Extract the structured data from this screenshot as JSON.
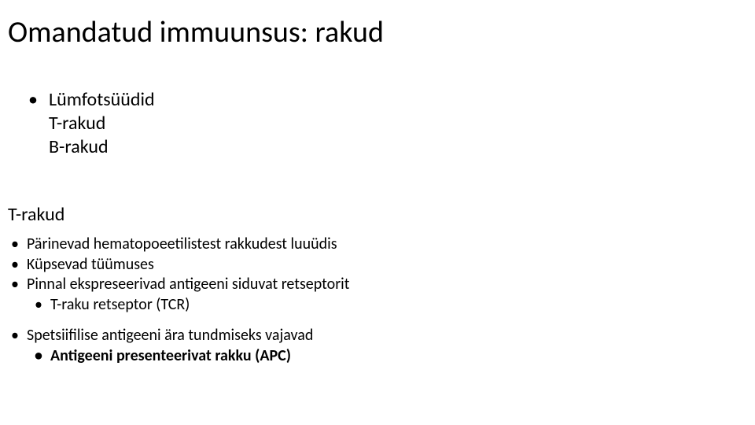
{
  "background_color": "#ffffff",
  "text_color": "#000000",
  "title": {
    "text": "Omandatud immuunsus: rakud",
    "fontsize": 38,
    "weight": 400
  },
  "body1": {
    "fontsize": 24,
    "bullet_label": "Lümfotsüüdid",
    "lines": [
      "T-rakud",
      "B-rakud"
    ]
  },
  "subhead": {
    "text": "T-rakud",
    "fontsize": 24
  },
  "body2": {
    "fontsize": 20,
    "group1": [
      {
        "level": 1,
        "text": "Pärinevad hematopoeetilistest rakkudest luuüdis",
        "bold": false
      },
      {
        "level": 1,
        "text": "Küpsevad tüümuses",
        "bold": false
      },
      {
        "level": 1,
        "text": "Pinnal ekspreseerivad antigeeni siduvat retseptorit",
        "bold": false
      },
      {
        "level": 2,
        "text": "T-raku retseptor (TCR)",
        "bold": false
      }
    ],
    "group2": [
      {
        "level": 1,
        "text": "Spetsiifilise antigeeni ära tundmiseks vajavad",
        "bold": false
      },
      {
        "level": 2,
        "text": "Antigeeni presenteerivat rakku (APC)",
        "bold": true
      }
    ]
  }
}
